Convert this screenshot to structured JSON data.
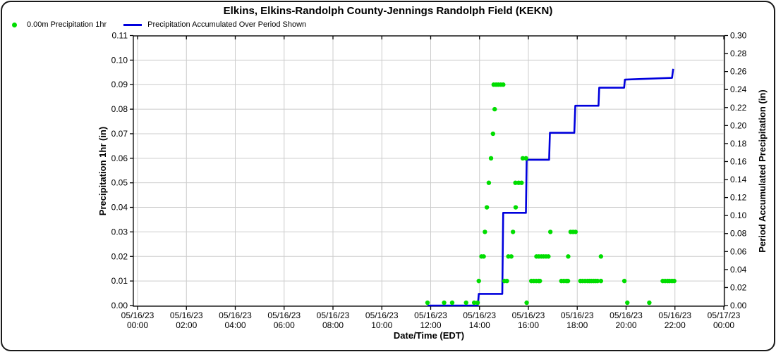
{
  "title": "Elkins, Elkins-Randolph County-Jennings Randolph Field (KEKN)",
  "legend": {
    "dot_label": "0.00m Precipitation 1hr",
    "line_label": "Precipitation Accumulated Over Period Shown",
    "dot_color": "#00dd00",
    "line_color": "#0000dd"
  },
  "chart_data": {
    "type": "scatter",
    "title": "Elkins, Elkins-Randolph County-Jennings Randolph Field (KEKN)",
    "xlabel": "Date/Time (EDT)",
    "grid": true,
    "grid_color": "#cccccc",
    "left_axis": {
      "label": "Precipitation 1hr (in)",
      "min": 0.0,
      "max": 0.11,
      "tick_step": 0.01,
      "tick_labels": [
        "0.00",
        "0.01",
        "0.02",
        "0.03",
        "0.04",
        "0.05",
        "0.06",
        "0.07",
        "0.08",
        "0.09",
        "0.10",
        "0.11"
      ]
    },
    "right_axis": {
      "label": "Period Accumulated Precipitation (in)",
      "min": 0.0,
      "max": 0.3,
      "tick_step": 0.02,
      "tick_labels": [
        "0.00",
        "0.02",
        "0.04",
        "0.06",
        "0.08",
        "0.10",
        "0.12",
        "0.14",
        "0.16",
        "0.18",
        "0.20",
        "0.22",
        "0.24",
        "0.26",
        "0.28",
        "0.30"
      ]
    },
    "x_axis": {
      "label": "Date/Time (EDT)",
      "range_hours": [
        0,
        24
      ],
      "tick_every_hours": 2,
      "ticks": [
        {
          "date": "05/16/23",
          "time": "00:00",
          "t": 0
        },
        {
          "date": "05/16/23",
          "time": "02:00",
          "t": 2
        },
        {
          "date": "05/16/23",
          "time": "04:00",
          "t": 4
        },
        {
          "date": "05/16/23",
          "time": "06:00",
          "t": 6
        },
        {
          "date": "05/16/23",
          "time": "08:00",
          "t": 8
        },
        {
          "date": "05/16/23",
          "time": "10:00",
          "t": 10
        },
        {
          "date": "05/16/23",
          "time": "12:00",
          "t": 12
        },
        {
          "date": "05/16/23",
          "time": "14:00",
          "t": 14
        },
        {
          "date": "05/16/23",
          "time": "16:00",
          "t": 16
        },
        {
          "date": "05/16/23",
          "time": "18:00",
          "t": 18
        },
        {
          "date": "05/16/23",
          "time": "20:00",
          "t": 20
        },
        {
          "date": "05/16/23",
          "time": "22:00",
          "t": 22
        },
        {
          "date": "05/17/23",
          "time": "00:00",
          "t": 24
        }
      ]
    },
    "series": [
      {
        "name": "0.00m Precipitation 1hr",
        "type": "scatter",
        "axis": "left",
        "color": "#00dd00",
        "points": [
          [
            11.87,
            0.0
          ],
          [
            12.55,
            0.0
          ],
          [
            12.88,
            0.0
          ],
          [
            13.45,
            0.0
          ],
          [
            13.78,
            0.0
          ],
          [
            13.92,
            0.0
          ],
          [
            15.93,
            0.0
          ],
          [
            20.05,
            0.0
          ],
          [
            20.95,
            0.0
          ],
          [
            13.97,
            0.01
          ],
          [
            15.02,
            0.01
          ],
          [
            15.12,
            0.01
          ],
          [
            16.12,
            0.01
          ],
          [
            16.22,
            0.01
          ],
          [
            16.32,
            0.01
          ],
          [
            16.42,
            0.01
          ],
          [
            16.47,
            0.01
          ],
          [
            17.35,
            0.01
          ],
          [
            17.45,
            0.01
          ],
          [
            17.55,
            0.01
          ],
          [
            17.62,
            0.01
          ],
          [
            18.13,
            0.01
          ],
          [
            18.22,
            0.01
          ],
          [
            18.32,
            0.01
          ],
          [
            18.42,
            0.01
          ],
          [
            18.5,
            0.01
          ],
          [
            18.58,
            0.01
          ],
          [
            18.67,
            0.01
          ],
          [
            18.75,
            0.01
          ],
          [
            18.83,
            0.01
          ],
          [
            18.97,
            0.01
          ],
          [
            19.93,
            0.01
          ],
          [
            21.5,
            0.01
          ],
          [
            21.6,
            0.01
          ],
          [
            21.7,
            0.01
          ],
          [
            21.78,
            0.01
          ],
          [
            21.88,
            0.01
          ],
          [
            21.97,
            0.01
          ],
          [
            14.08,
            0.02
          ],
          [
            14.17,
            0.02
          ],
          [
            15.18,
            0.02
          ],
          [
            15.3,
            0.02
          ],
          [
            16.33,
            0.02
          ],
          [
            16.43,
            0.02
          ],
          [
            16.53,
            0.02
          ],
          [
            16.62,
            0.02
          ],
          [
            16.72,
            0.02
          ],
          [
            16.82,
            0.02
          ],
          [
            17.63,
            0.02
          ],
          [
            18.97,
            0.02
          ],
          [
            14.22,
            0.03
          ],
          [
            15.37,
            0.03
          ],
          [
            16.9,
            0.03
          ],
          [
            17.73,
            0.03
          ],
          [
            17.83,
            0.03
          ],
          [
            17.93,
            0.03
          ],
          [
            14.3,
            0.04
          ],
          [
            15.48,
            0.04
          ],
          [
            14.38,
            0.05
          ],
          [
            15.47,
            0.05
          ],
          [
            15.6,
            0.05
          ],
          [
            15.72,
            0.05
          ],
          [
            14.47,
            0.06
          ],
          [
            15.77,
            0.06
          ],
          [
            15.9,
            0.06
          ],
          [
            14.55,
            0.07
          ],
          [
            14.62,
            0.08
          ],
          [
            14.58,
            0.09
          ],
          [
            14.68,
            0.09
          ],
          [
            14.77,
            0.09
          ],
          [
            14.87,
            0.09
          ],
          [
            14.97,
            0.09
          ]
        ]
      },
      {
        "name": "Precipitation Accumulated Over Period Shown",
        "type": "step-line",
        "axis": "right",
        "color": "#0000dd",
        "points": [
          [
            11.87,
            0.0
          ],
          [
            13.93,
            0.0
          ],
          [
            13.97,
            0.013
          ],
          [
            14.93,
            0.013
          ],
          [
            14.97,
            0.103
          ],
          [
            15.9,
            0.103
          ],
          [
            15.93,
            0.162
          ],
          [
            16.85,
            0.162
          ],
          [
            16.88,
            0.192
          ],
          [
            17.88,
            0.192
          ],
          [
            17.92,
            0.222
          ],
          [
            18.87,
            0.222
          ],
          [
            18.9,
            0.242
          ],
          [
            19.92,
            0.242
          ],
          [
            19.95,
            0.251
          ],
          [
            21.88,
            0.253
          ],
          [
            21.93,
            0.263
          ]
        ]
      }
    ]
  }
}
